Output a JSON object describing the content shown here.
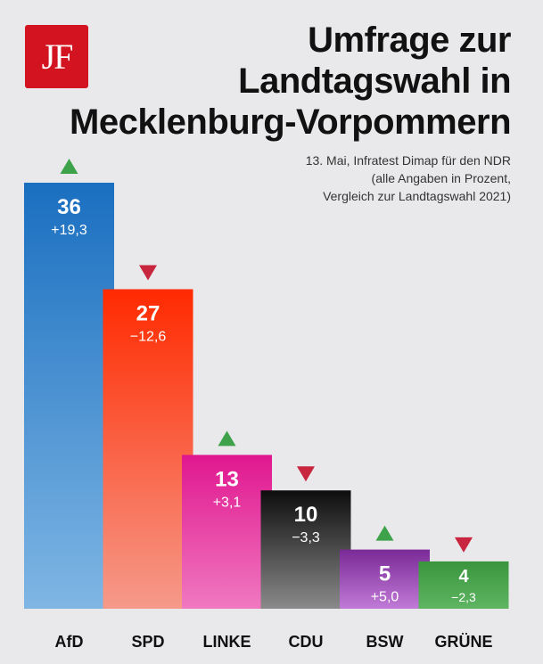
{
  "logo": {
    "text": "JF"
  },
  "title": {
    "line1": "Umfrage zur",
    "line2": "Landtagswahl in",
    "line3": "Mecklenburg-Vorpommern"
  },
  "subtitle": {
    "line1": "13. Mai, Infratest Dimap für den NDR",
    "line2": "(alle Angaben in Prozent,",
    "line3": "Vergleich zur Landtagswahl 2021)"
  },
  "chart_data": {
    "type": "bar",
    "categories": [
      "AfD",
      "SPD",
      "LINKE",
      "CDU",
      "BSW",
      "GRÜNE"
    ],
    "values": [
      36,
      27,
      13,
      10,
      5,
      4
    ],
    "value_labels": [
      "36",
      "27",
      "13",
      "10",
      "5",
      "4"
    ],
    "changes": [
      19.3,
      -12.6,
      3.1,
      -3.3,
      5.0,
      -2.3
    ],
    "change_labels": [
      "+19,3",
      "−12,6",
      "+3,1",
      "−3,3",
      "+5,0",
      "−2,3"
    ],
    "trend": [
      "up",
      "down",
      "up",
      "down",
      "up",
      "down"
    ],
    "colors": {
      "AfD": [
        "#1a6fc0",
        "#7fb6e4"
      ],
      "SPD": [
        "#ff2a00",
        "#f59a8a"
      ],
      "LINKE": [
        "#e0178f",
        "#f079c0"
      ],
      "CDU": [
        "#0d0d0d",
        "#8a8a8a"
      ],
      "BSW": [
        "#7a2a97",
        "#c07ad6"
      ],
      "GRÜNE": [
        "#3a953d",
        "#5fb562"
      ]
    },
    "trend_colors": {
      "up": "#3ea24a",
      "down": "#c8253f"
    },
    "ylim": [
      0,
      36
    ],
    "grid": false
  }
}
